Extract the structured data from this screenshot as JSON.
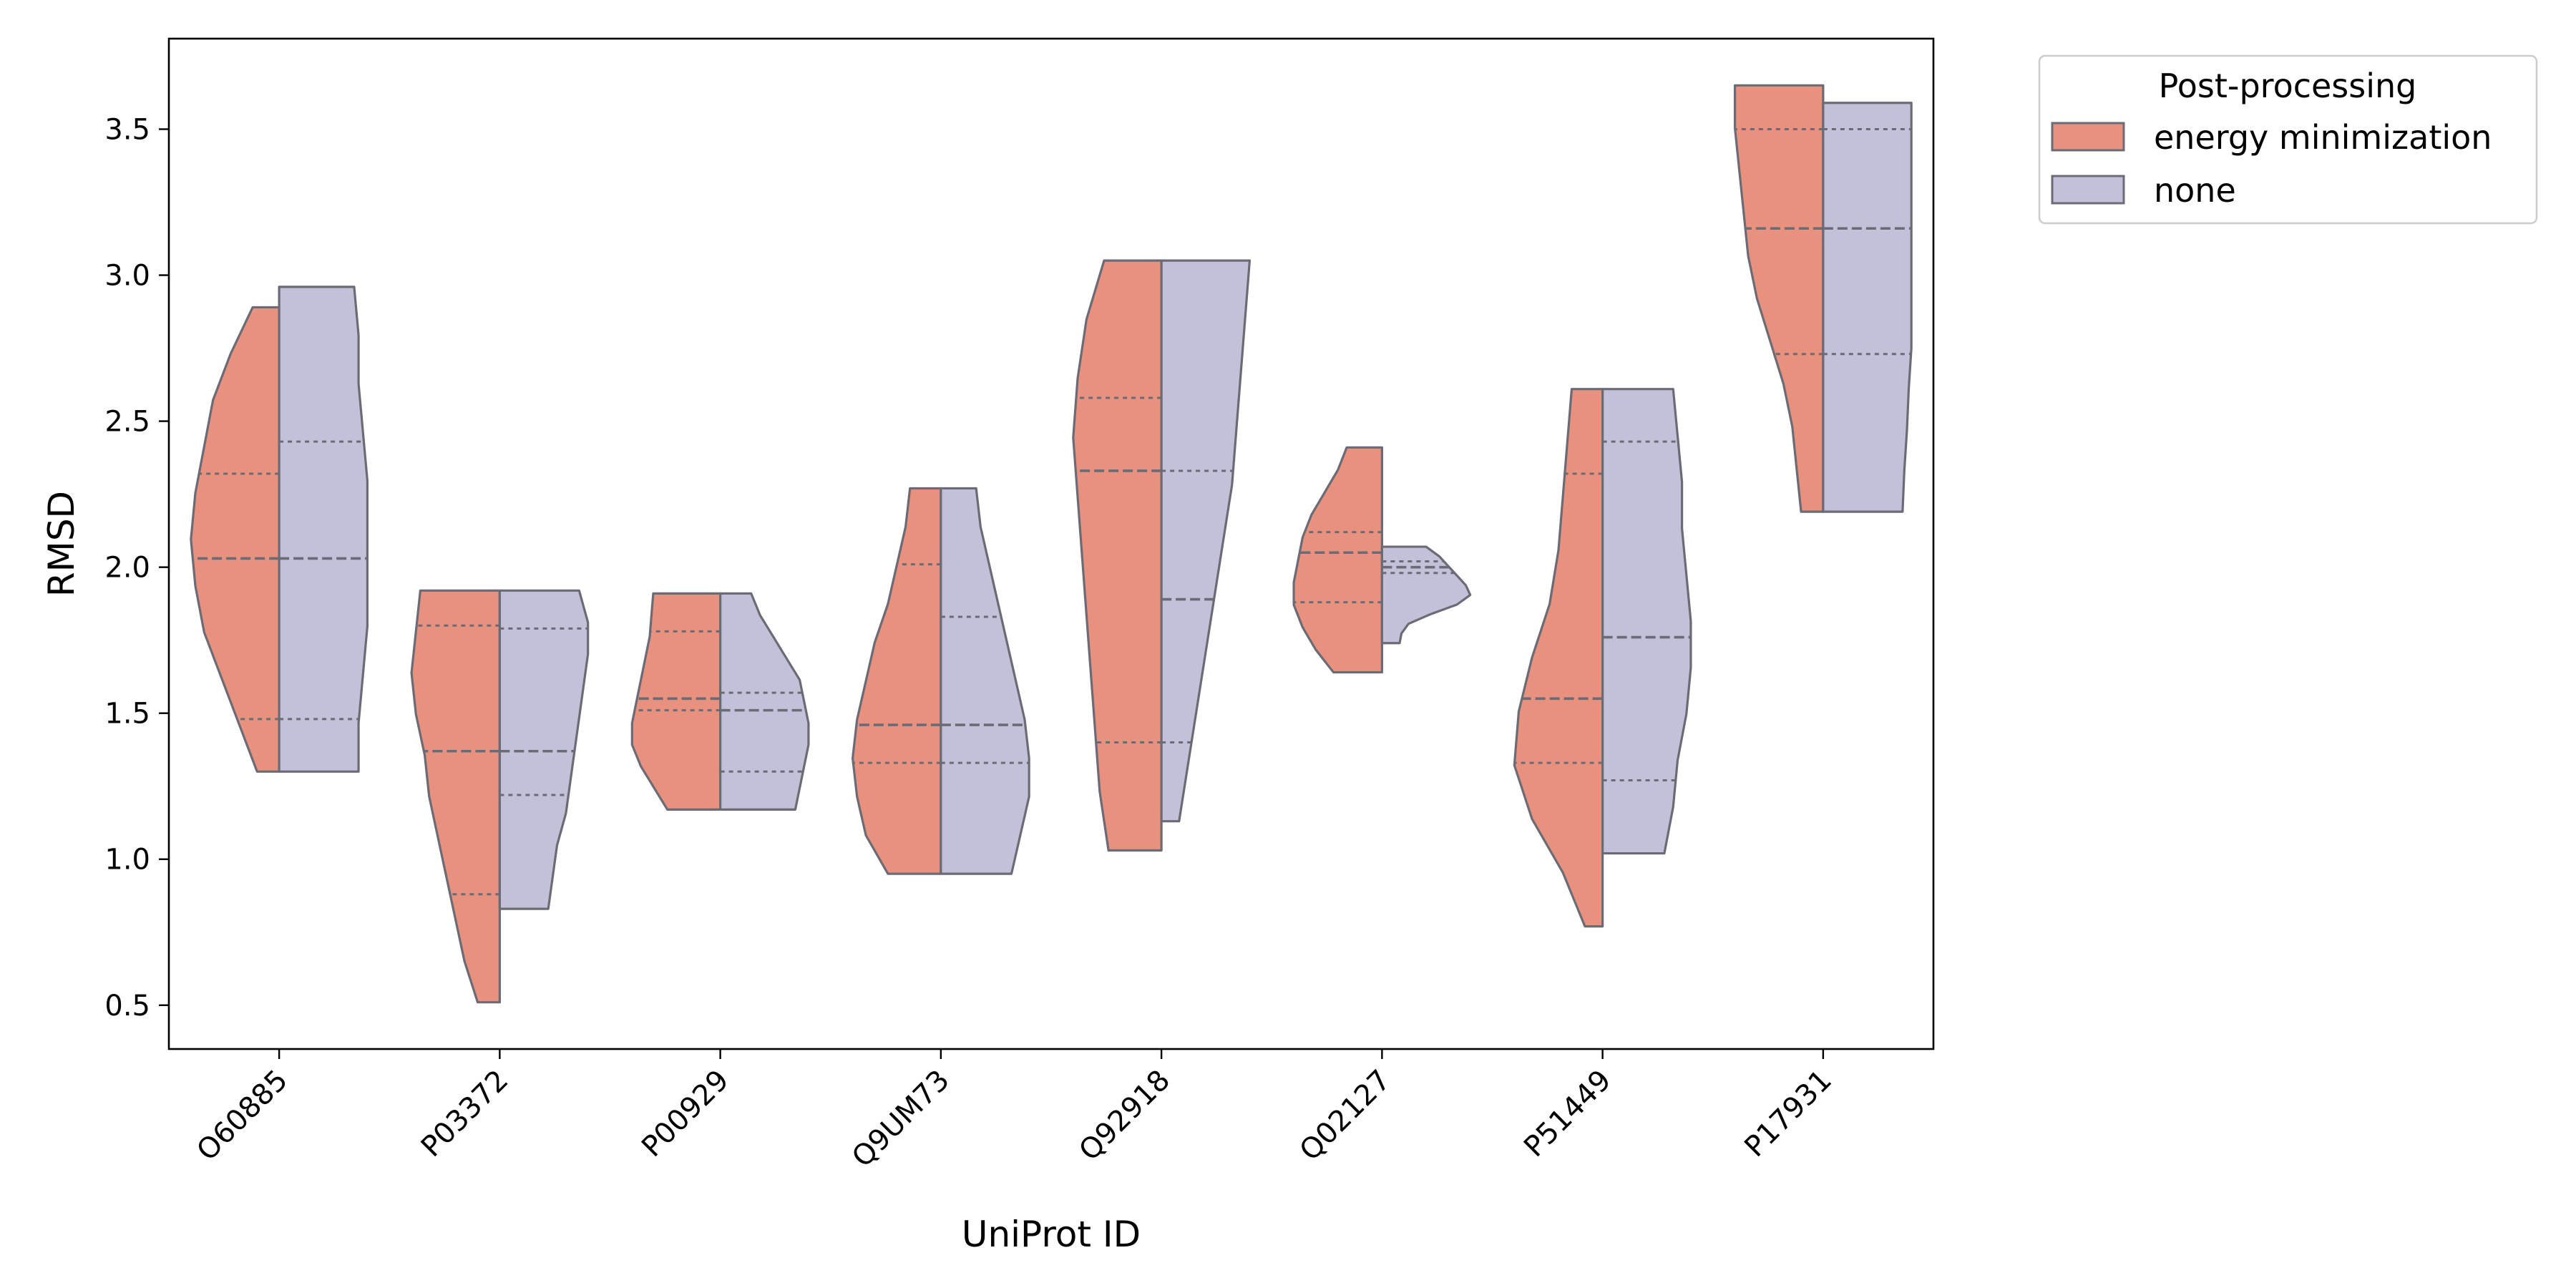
{
  "chart_data": {
    "type": "violin",
    "split": true,
    "xlabel": "UniProt ID",
    "ylabel": "RMSD",
    "ylim": [
      0.35,
      3.81
    ],
    "yticks": [
      0.5,
      1.0,
      1.5,
      2.0,
      2.5,
      3.0,
      3.5
    ],
    "ytick_labels": [
      "0.5",
      "1.0",
      "1.5",
      "2.0",
      "2.5",
      "3.0",
      "3.5"
    ],
    "grid": false,
    "inner": "quartile",
    "categories": [
      "O60885",
      "P03372",
      "P00929",
      "Q9UM73",
      "Q92918",
      "Q02127",
      "P51449",
      "P17931"
    ],
    "legend": {
      "title": "Post-processing",
      "placement": "outside-top-right"
    },
    "series": [
      {
        "name": "energy minimization",
        "color": "#e8917f",
        "violins": [
          {
            "min": 1.3,
            "max": 2.89,
            "q1": 1.48,
            "median": 2.03,
            "q3": 2.32,
            "profile": [
              0.25,
              0.45,
              0.65,
              0.85,
              0.95,
              1.0,
              0.95,
              0.85,
              0.75,
              0.55,
              0.3
            ]
          },
          {
            "min": 0.51,
            "max": 1.92,
            "q1": 0.88,
            "median": 1.37,
            "q3": 1.8,
            "profile": [
              0.25,
              0.4,
              0.5,
              0.6,
              0.7,
              0.8,
              0.85,
              0.95,
              1.0,
              0.95,
              0.9
            ]
          },
          {
            "min": 1.17,
            "max": 1.91,
            "q1": 1.51,
            "median": 1.55,
            "q3": 1.78,
            "profile": [
              0.6,
              0.75,
              0.9,
              1.0,
              1.0,
              0.95,
              0.9,
              0.85,
              0.8,
              0.78,
              0.76
            ]
          },
          {
            "min": 0.95,
            "max": 2.27,
            "q1": 1.33,
            "median": 1.46,
            "q3": 2.01,
            "profile": [
              0.6,
              0.85,
              0.95,
              1.0,
              0.95,
              0.85,
              0.75,
              0.6,
              0.5,
              0.4,
              0.35
            ]
          },
          {
            "min": 1.03,
            "max": 3.05,
            "q1": 1.4,
            "median": 2.33,
            "q3": 2.58,
            "profile": [
              0.6,
              0.7,
              0.75,
              0.8,
              0.85,
              0.9,
              0.95,
              1.0,
              0.95,
              0.85,
              0.65
            ]
          },
          {
            "min": 1.64,
            "max": 2.41,
            "q1": 1.88,
            "median": 2.05,
            "q3": 2.12,
            "profile": [
              0.55,
              0.75,
              0.9,
              1.0,
              1.0,
              0.95,
              0.9,
              0.8,
              0.65,
              0.5,
              0.4
            ]
          },
          {
            "min": 0.77,
            "max": 2.61,
            "q1": 1.33,
            "median": 1.55,
            "q3": 2.32,
            "profile": [
              0.2,
              0.45,
              0.8,
              1.0,
              0.95,
              0.8,
              0.6,
              0.5,
              0.45,
              0.4,
              0.35
            ]
          },
          {
            "min": 2.19,
            "max": 3.65,
            "q1": 2.73,
            "median": 3.16,
            "q3": 3.5,
            "profile": [
              0.25,
              0.3,
              0.35,
              0.45,
              0.6,
              0.75,
              0.85,
              0.9,
              0.95,
              1.0,
              1.0
            ]
          }
        ]
      },
      {
        "name": "none",
        "color": "#c3c0d9",
        "violins": [
          {
            "min": 1.3,
            "max": 2.96,
            "q1": 1.48,
            "median": 2.03,
            "q3": 2.43,
            "profile": [
              0.9,
              0.9,
              0.95,
              1.0,
              1.0,
              1.0,
              1.0,
              0.95,
              0.9,
              0.9,
              0.85
            ]
          },
          {
            "min": 0.83,
            "max": 1.92,
            "q1": 1.22,
            "median": 1.37,
            "q3": 1.79,
            "profile": [
              0.55,
              0.6,
              0.65,
              0.75,
              0.8,
              0.85,
              0.9,
              0.95,
              1.0,
              1.0,
              0.9
            ]
          },
          {
            "min": 1.17,
            "max": 1.91,
            "q1": 1.3,
            "median": 1.51,
            "q3": 1.57,
            "profile": [
              0.85,
              0.9,
              0.95,
              1.0,
              1.0,
              0.95,
              0.9,
              0.75,
              0.6,
              0.45,
              0.35
            ]
          },
          {
            "min": 0.95,
            "max": 2.27,
            "q1": 1.33,
            "median": 1.46,
            "q3": 1.83,
            "profile": [
              0.8,
              0.9,
              1.0,
              1.0,
              0.95,
              0.85,
              0.75,
              0.65,
              0.55,
              0.45,
              0.4
            ]
          },
          {
            "min": 1.13,
            "max": 3.05,
            "q1": 1.4,
            "median": 1.89,
            "q3": 2.33,
            "profile": [
              0.2,
              0.3,
              0.4,
              0.5,
              0.6,
              0.7,
              0.8,
              0.85,
              0.9,
              0.95,
              1.0
            ]
          },
          {
            "min": 1.74,
            "max": 2.07,
            "q1": 1.98,
            "median": 2.0,
            "q3": 2.02,
            "profile": [
              0.2,
              0.22,
              0.3,
              0.55,
              0.85,
              1.0,
              0.95,
              0.85,
              0.75,
              0.65,
              0.5
            ]
          },
          {
            "min": 1.02,
            "max": 2.61,
            "q1": 1.27,
            "median": 1.76,
            "q3": 2.43,
            "profile": [
              0.7,
              0.8,
              0.85,
              0.95,
              1.0,
              1.0,
              0.95,
              0.9,
              0.9,
              0.85,
              0.8
            ]
          },
          {
            "min": 2.19,
            "max": 3.59,
            "q1": 2.73,
            "median": 3.16,
            "q3": 3.5,
            "profile": [
              0.9,
              0.92,
              0.95,
              0.97,
              1.0,
              1.0,
              1.0,
              1.0,
              1.0,
              1.0,
              1.0
            ]
          }
        ]
      }
    ]
  }
}
